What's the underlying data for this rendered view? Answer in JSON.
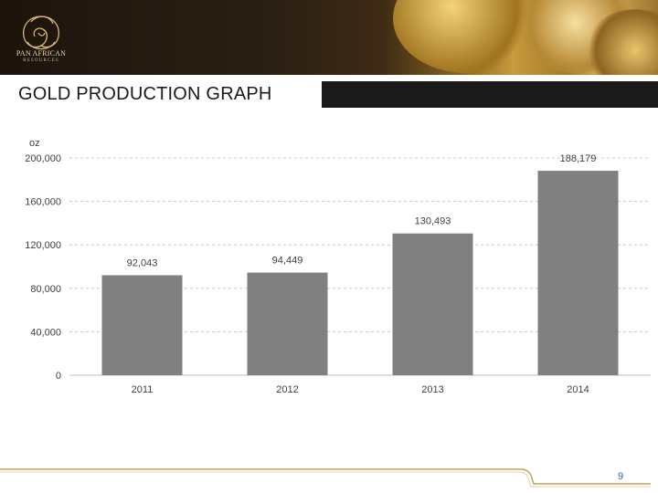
{
  "slide": {
    "title": "GOLD PRODUCTION GRAPH",
    "page_number": "9",
    "logo": {
      "name": "PAN AFRICAN",
      "subtitle": "RESOURCES"
    }
  },
  "chart_data": {
    "type": "bar",
    "categories": [
      "2011",
      "2012",
      "2013",
      "2014"
    ],
    "values": [
      92043,
      94449,
      130493,
      188179
    ],
    "value_labels": [
      "92,043",
      "94,449",
      "130,493",
      "188,179"
    ],
    "unit_label": "oz",
    "y_ticks": [
      0,
      40000,
      80000,
      120000,
      160000,
      200000
    ],
    "y_tick_labels": [
      "0",
      "40,000",
      "80,000",
      "120,000",
      "160,000",
      "200,000"
    ],
    "ylim": [
      0,
      200000
    ],
    "grid": "dashed horizontal",
    "colors": {
      "bar": "#808080",
      "grid": "#c8c8c8",
      "axis": "#bfbfbf"
    }
  }
}
